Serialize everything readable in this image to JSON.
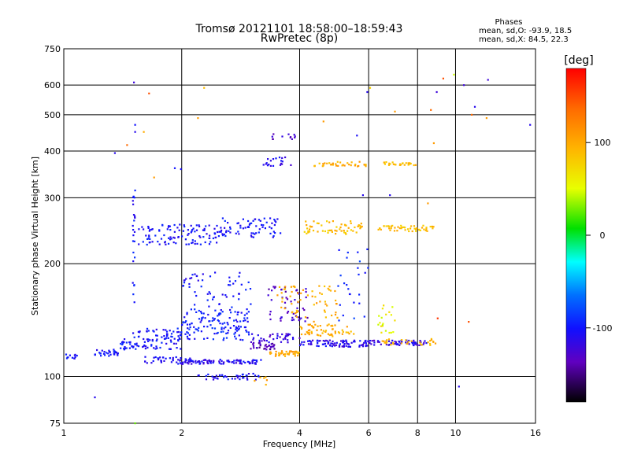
{
  "chart_data": {
    "type": "scatter",
    "title": "Tromsø 20121101 18:58:00–18:59:43",
    "subtitle": "RwPretec (8p)",
    "xlabel": "Frequency [MHz]",
    "ylabel": "Stationary phase Virtual Height [km]",
    "xscale": "log",
    "yscale": "log",
    "xlim": [
      1,
      16
    ],
    "ylim": [
      75,
      750
    ],
    "xticks": [
      1,
      2,
      4,
      6,
      8,
      10,
      16
    ],
    "yticks": [
      75,
      100,
      200,
      300,
      400,
      500,
      600,
      750
    ],
    "grid": true,
    "phase_info": {
      "title": "Phases",
      "line1": "mean, sd,O: -93.9, 18.5",
      "line2": "mean, sd,X:  84.5, 22.3"
    },
    "colorbar": {
      "label": "[deg]",
      "ticks": [
        100,
        0,
        -100
      ],
      "range": [
        -180,
        180
      ]
    },
    "clusters": [
      {
        "f": [
          1.0,
          1.08
        ],
        "h": [
          111,
          115
        ],
        "n": 12,
        "ph": -100
      },
      {
        "f": [
          1.2,
          1.38
        ],
        "h": [
          113,
          118
        ],
        "n": 30,
        "ph": -100
      },
      {
        "f": [
          1.38,
          1.52
        ],
        "h": [
          118,
          126
        ],
        "n": 20,
        "ph": -100
      },
      {
        "f": [
          1.5,
          2.0
        ],
        "h": [
          118,
          135
        ],
        "n": 90,
        "ph": -100
      },
      {
        "f": [
          1.6,
          2.1
        ],
        "h": [
          108,
          113
        ],
        "n": 40,
        "ph": -105
      },
      {
        "f": [
          2.0,
          3.2
        ],
        "h": [
          108,
          111
        ],
        "n": 90,
        "ph": -110
      },
      {
        "f": [
          2.0,
          3.0
        ],
        "h": [
          125,
          150
        ],
        "n": 130,
        "ph": -95
      },
      {
        "f": [
          2.0,
          3.0
        ],
        "h": [
          150,
          190
        ],
        "n": 60,
        "ph": -100
      },
      {
        "f": [
          1.55,
          2.5
        ],
        "h": [
          225,
          255
        ],
        "n": 110,
        "ph": -100
      },
      {
        "f": [
          2.5,
          3.6
        ],
        "h": [
          235,
          265
        ],
        "n": 70,
        "ph": -100
      },
      {
        "f": [
          3.0,
          3.5
        ],
        "h": [
          118,
          123
        ],
        "n": 30,
        "ph": -135
      },
      {
        "f": [
          3.0,
          4.0
        ],
        "h": [
          123,
          130
        ],
        "n": 40,
        "ph": -120
      },
      {
        "f": [
          3.3,
          4.2
        ],
        "h": [
          140,
          175
        ],
        "n": 50,
        "ph": -130
      },
      {
        "f": [
          3.5,
          5.0
        ],
        "h": [
          140,
          175
        ],
        "n": 60,
        "ph": 100
      },
      {
        "f": [
          3.3,
          4.0
        ],
        "h": [
          113,
          117
        ],
        "n": 40,
        "ph": 105
      },
      {
        "f": [
          4.0,
          6.0
        ],
        "h": [
          120,
          125
        ],
        "n": 90,
        "ph": -110
      },
      {
        "f": [
          6.0,
          8.5
        ],
        "h": [
          121,
          125
        ],
        "n": 60,
        "ph": -115
      },
      {
        "f": [
          4.0,
          5.5
        ],
        "h": [
          128,
          138
        ],
        "n": 60,
        "ph": 100
      },
      {
        "f": [
          6.5,
          9.0
        ],
        "h": [
          121,
          126
        ],
        "n": 30,
        "ph": 95
      },
      {
        "f": [
          4.0,
          5.8
        ],
        "h": [
          240,
          260
        ],
        "n": 60,
        "ph": 90
      },
      {
        "f": [
          6.3,
          8.8
        ],
        "h": [
          244,
          253
        ],
        "n": 50,
        "ph": 90
      },
      {
        "f": [
          4.3,
          6.0
        ],
        "h": [
          364,
          375
        ],
        "n": 35,
        "ph": 100
      },
      {
        "f": [
          6.5,
          8.0
        ],
        "h": [
          366,
          374
        ],
        "n": 25,
        "ph": 95
      },
      {
        "f": [
          3.2,
          3.8
        ],
        "h": [
          365,
          385
        ],
        "n": 20,
        "ph": -110
      },
      {
        "f": [
          3.4,
          3.9
        ],
        "h": [
          430,
          445
        ],
        "n": 12,
        "ph": -130
      },
      {
        "f": [
          2.2,
          3.2
        ],
        "h": [
          98,
          102
        ],
        "n": 40,
        "ph": -105
      },
      {
        "f": [
          3.0,
          3.3
        ],
        "h": [
          95,
          100
        ],
        "n": 6,
        "ph": 105
      },
      {
        "f": [
          6.3,
          7.0
        ],
        "h": [
          130,
          165
        ],
        "n": 20,
        "ph": 60
      },
      {
        "f": [
          1.5,
          1.52
        ],
        "h": [
          150,
          330
        ],
        "n": 25,
        "ph": -100
      },
      {
        "f": [
          5.0,
          6.0
        ],
        "h": [
          140,
          220
        ],
        "n": 25,
        "ph": -90
      }
    ],
    "outliers": [
      {
        "f": 1.51,
        "h": 610,
        "ph": -120
      },
      {
        "f": 1.65,
        "h": 570,
        "ph": 150
      },
      {
        "f": 1.45,
        "h": 415,
        "ph": 140
      },
      {
        "f": 1.35,
        "h": 395,
        "ph": -110
      },
      {
        "f": 1.52,
        "h": 470,
        "ph": -100
      },
      {
        "f": 1.52,
        "h": 450,
        "ph": -110
      },
      {
        "f": 1.92,
        "h": 360,
        "ph": -100
      },
      {
        "f": 1.99,
        "h": 358,
        "ph": -105
      },
      {
        "f": 2.28,
        "h": 590,
        "ph": 90
      },
      {
        "f": 2.2,
        "h": 490,
        "ph": 110
      },
      {
        "f": 5.95,
        "h": 575,
        "ph": -110
      },
      {
        "f": 6.05,
        "h": 590,
        "ph": 80
      },
      {
        "f": 8.65,
        "h": 515,
        "ph": 140
      },
      {
        "f": 8.95,
        "h": 575,
        "ph": -120
      },
      {
        "f": 9.3,
        "h": 625,
        "ph": 150
      },
      {
        "f": 9.9,
        "h": 640,
        "ph": 50
      },
      {
        "f": 10.5,
        "h": 600,
        "ph": -120
      },
      {
        "f": 11.2,
        "h": 525,
        "ph": -110
      },
      {
        "f": 12.1,
        "h": 620,
        "ph": -120
      },
      {
        "f": 11.0,
        "h": 500,
        "ph": 140
      },
      {
        "f": 12.0,
        "h": 490,
        "ph": 110
      },
      {
        "f": 15.5,
        "h": 470,
        "ph": -110
      },
      {
        "f": 10.2,
        "h": 94,
        "ph": -110
      },
      {
        "f": 1.2,
        "h": 88,
        "ph": -110
      },
      {
        "f": 1.52,
        "h": 75,
        "ph": 30
      },
      {
        "f": 10.8,
        "h": 140,
        "ph": 150
      },
      {
        "f": 9.0,
        "h": 143,
        "ph": 160
      },
      {
        "f": 4.6,
        "h": 480,
        "ph": 110
      },
      {
        "f": 5.6,
        "h": 440,
        "ph": -105
      },
      {
        "f": 7.0,
        "h": 510,
        "ph": 110
      },
      {
        "f": 8.8,
        "h": 420,
        "ph": 110
      },
      {
        "f": 5.8,
        "h": 305,
        "ph": -110
      },
      {
        "f": 8.5,
        "h": 290,
        "ph": 110
      },
      {
        "f": 6.8,
        "h": 305,
        "ph": -110
      },
      {
        "f": 1.6,
        "h": 450,
        "ph": 100
      },
      {
        "f": 1.7,
        "h": 340,
        "ph": 110
      }
    ]
  }
}
